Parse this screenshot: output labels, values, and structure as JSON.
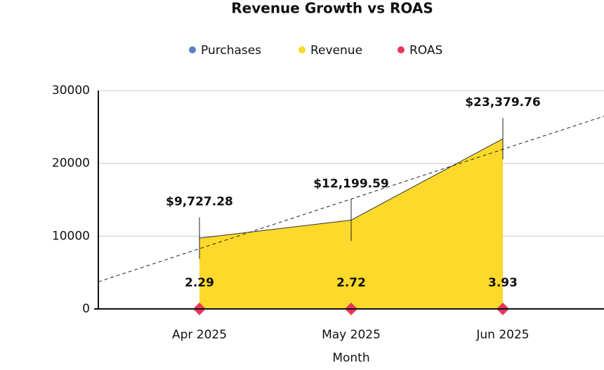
{
  "chart_data": {
    "type": "area",
    "title": "Revenue Growth vs ROAS",
    "x_label": "Month",
    "categories": [
      "Apr 2025",
      "May 2025",
      "Jun 2025"
    ],
    "series": [
      {
        "name": "Purchases",
        "color": "#5b7fbf",
        "values": [
          null,
          null,
          null
        ]
      },
      {
        "name": "Revenue",
        "color": "#fcd92a",
        "values": [
          9727.28,
          12199.59,
          23379.76
        ],
        "value_labels": [
          "$9,727.28",
          "$12,199.59",
          "$23,379.76"
        ],
        "errors": [
          2850,
          2850,
          2850
        ]
      },
      {
        "name": "ROAS",
        "color": "#e8365a",
        "values": [
          2.29,
          2.72,
          3.93
        ]
      }
    ],
    "ylim": [
      0,
      30000
    ],
    "yticks": [
      0,
      10000,
      20000,
      30000
    ],
    "grid": true,
    "trendline": true,
    "legend": "top"
  }
}
